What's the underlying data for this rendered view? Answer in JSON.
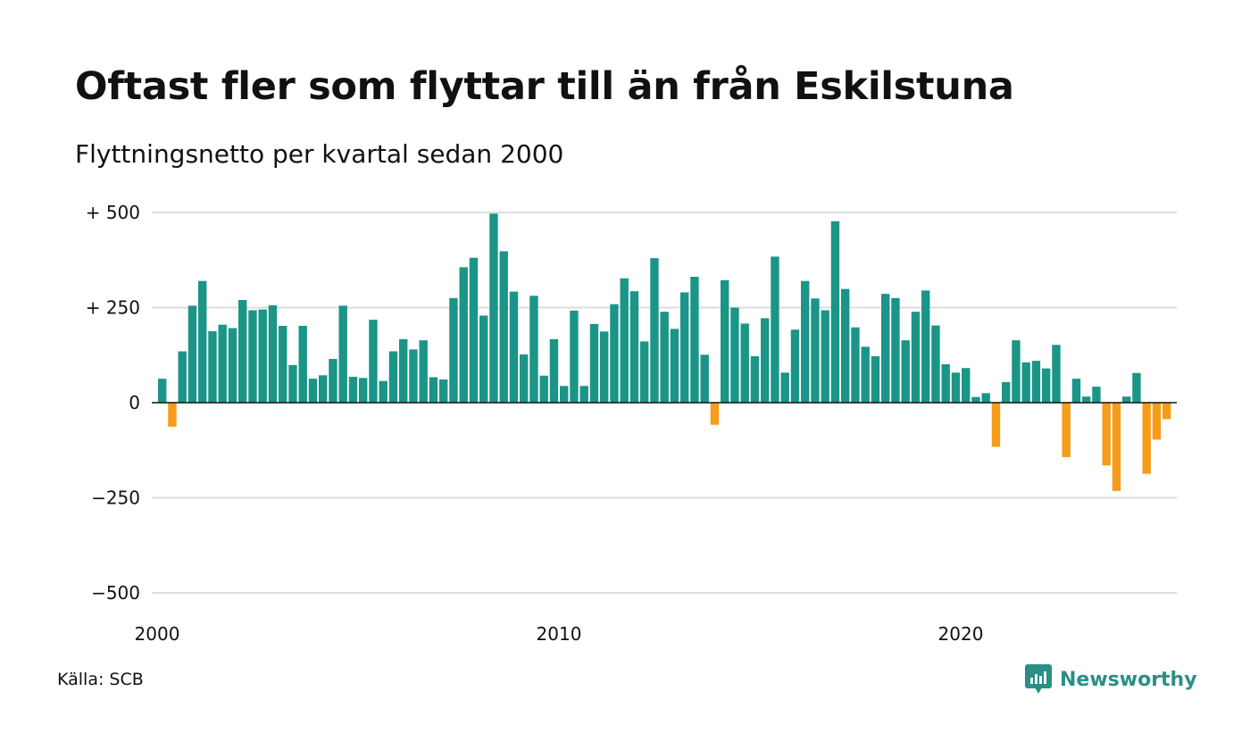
{
  "title": "Oftast fler som flyttar till än från Eskilstuna",
  "subtitle": "Flyttningsnetto per kvartal sedan 2000",
  "source": "Källa: SCB",
  "brand": "Newsworthy",
  "colors": {
    "positive": "#1a9587",
    "negative": "#f59c1b",
    "grid": "#dddddd",
    "zero_line": "#111111",
    "brand": "#2a8f84"
  },
  "chart_data": {
    "type": "bar",
    "title": "Oftast fler som flyttar till än från Eskilstuna",
    "subtitle": "Flyttningsnetto per kvartal sedan 2000",
    "xlabel": "",
    "ylabel": "",
    "ylim": [
      -500,
      500
    ],
    "grid": true,
    "y_ticks": [
      {
        "value": 500,
        "label": "+ 500"
      },
      {
        "value": 250,
        "label": "+ 250"
      },
      {
        "value": 0,
        "label": "0"
      },
      {
        "value": -250,
        "label": "−250"
      },
      {
        "value": -500,
        "label": "−500"
      }
    ],
    "x_ticks": [
      {
        "index": 0,
        "label": "2000"
      },
      {
        "index": 40,
        "label": "2010"
      },
      {
        "index": 80,
        "label": "2020"
      }
    ],
    "start_period": "2000 Q1",
    "values": [
      63,
      -63,
      135,
      255,
      320,
      188,
      205,
      196,
      270,
      243,
      245,
      256,
      202,
      99,
      202,
      63,
      72,
      115,
      255,
      68,
      65,
      218,
      57,
      135,
      167,
      140,
      164,
      67,
      61,
      275,
      356,
      381,
      229,
      497,
      398,
      292,
      127,
      281,
      71,
      167,
      44,
      242,
      44,
      207,
      187,
      259,
      327,
      293,
      161,
      380,
      239,
      194,
      290,
      331,
      126,
      -58,
      322,
      250,
      208,
      122,
      222,
      384,
      79,
      192,
      320,
      274,
      243,
      477,
      299,
      198,
      147,
      122,
      286,
      275,
      164,
      239,
      295,
      203,
      101,
      79,
      91,
      15,
      25,
      -116,
      54,
      164,
      106,
      110,
      90,
      152,
      -143,
      63,
      16,
      42,
      -165,
      -232,
      16,
      78,
      -187,
      -97,
      -43
    ]
  }
}
